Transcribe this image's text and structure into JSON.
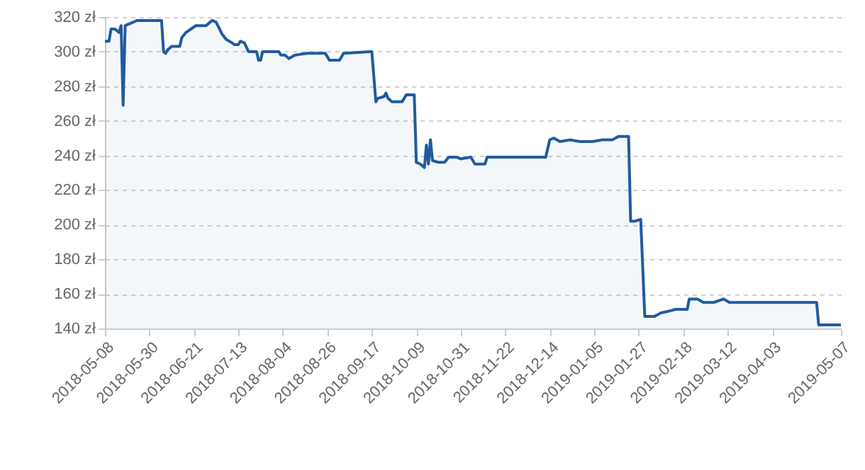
{
  "chart_data": {
    "type": "area",
    "xlim": [
      "2018-05-08",
      "2019-05-07"
    ],
    "ylim": [
      140,
      320
    ],
    "xticks": [
      "2018-05-08",
      "2018-05-30",
      "2018-06-21",
      "2018-07-13",
      "2018-08-04",
      "2018-08-26",
      "2018-09-17",
      "2018-10-09",
      "2018-10-31",
      "2018-11-22",
      "2018-12-14",
      "2019-01-05",
      "2019-01-27",
      "2019-02-18",
      "2019-03-12",
      "2019-04-03",
      "2019-05-07"
    ],
    "yticks": [
      {
        "value": 140,
        "label": "140 zł"
      },
      {
        "value": 160,
        "label": "160 zł"
      },
      {
        "value": 180,
        "label": "180 zł"
      },
      {
        "value": 200,
        "label": "200 zł"
      },
      {
        "value": 220,
        "label": "220 zł"
      },
      {
        "value": 240,
        "label": "240 zł"
      },
      {
        "value": 260,
        "label": "260 zł"
      },
      {
        "value": 280,
        "label": "280 zł"
      },
      {
        "value": 300,
        "label": "300 zł"
      },
      {
        "value": 320,
        "label": "320 zł"
      }
    ],
    "grid": "y",
    "marker": "none",
    "line_style": "solid",
    "series": [
      {
        "color": "#1f5b9e",
        "x": [
          "2018-05-08",
          "2018-05-10",
          "2018-05-11",
          "2018-05-13",
          "2018-05-15",
          "2018-05-16",
          "2018-05-17",
          "2018-05-18",
          "2018-05-20",
          "2018-05-24",
          "2018-06-05",
          "2018-06-06",
          "2018-06-07",
          "2018-06-08",
          "2018-06-10",
          "2018-06-14",
          "2018-06-15",
          "2018-06-17",
          "2018-06-22",
          "2018-06-27",
          "2018-06-30",
          "2018-07-02",
          "2018-07-05",
          "2018-07-07",
          "2018-07-10",
          "2018-07-11",
          "2018-07-13",
          "2018-07-14",
          "2018-07-16",
          "2018-07-18",
          "2018-07-22",
          "2018-07-23",
          "2018-07-24",
          "2018-07-25",
          "2018-08-02",
          "2018-08-03",
          "2018-08-05",
          "2018-08-07",
          "2018-08-10",
          "2018-08-16",
          "2018-08-25",
          "2018-08-27",
          "2018-09-01",
          "2018-09-03",
          "2018-09-17",
          "2018-09-19",
          "2018-09-20",
          "2018-09-23",
          "2018-09-24",
          "2018-09-25",
          "2018-09-27",
          "2018-10-02",
          "2018-10-04",
          "2018-10-08",
          "2018-10-09",
          "2018-10-11",
          "2018-10-13",
          "2018-10-14",
          "2018-10-15",
          "2018-10-16",
          "2018-10-17",
          "2018-10-20",
          "2018-10-23",
          "2018-10-25",
          "2018-10-29",
          "2018-10-31",
          "2018-11-05",
          "2018-11-07",
          "2018-11-12",
          "2018-11-13",
          "2018-12-12",
          "2018-12-14",
          "2018-12-16",
          "2018-12-19",
          "2018-12-24",
          "2018-12-29",
          "2019-01-01",
          "2019-01-04",
          "2019-01-09",
          "2019-01-14",
          "2019-01-17",
          "2019-01-22",
          "2019-01-23",
          "2019-01-25",
          "2019-01-28",
          "2019-01-30",
          "2019-02-04",
          "2019-02-07",
          "2019-02-11",
          "2019-02-14",
          "2019-02-17",
          "2019-02-20",
          "2019-02-21",
          "2019-02-25",
          "2019-02-28",
          "2019-03-05",
          "2019-03-10",
          "2019-03-13",
          "2019-03-16",
          "2019-03-18",
          "2019-04-25",
          "2019-04-26",
          "2019-05-07"
        ],
        "values": [
          306,
          306,
          313,
          313,
          311,
          315,
          269,
          315,
          316,
          318,
          318,
          300,
          299,
          301,
          303,
          303,
          308,
          311,
          315,
          315,
          318,
          317,
          310,
          307,
          305,
          304,
          304,
          306,
          305,
          300,
          300,
          295,
          295,
          300,
          300,
          298,
          298,
          296,
          298,
          299,
          299,
          295,
          295,
          299,
          300,
          271,
          273,
          274,
          276,
          273,
          271,
          271,
          275,
          275,
          236,
          235,
          233,
          246,
          235,
          249,
          237,
          236,
          236,
          239,
          239,
          238,
          239,
          235,
          235,
          239,
          239,
          249,
          250,
          248,
          249,
          248,
          248,
          248,
          249,
          249,
          251,
          251,
          202,
          202,
          203,
          147,
          147,
          149,
          150,
          151,
          151,
          151,
          157,
          157,
          155,
          155,
          157,
          155,
          155,
          155,
          155,
          142,
          142
        ]
      }
    ]
  }
}
